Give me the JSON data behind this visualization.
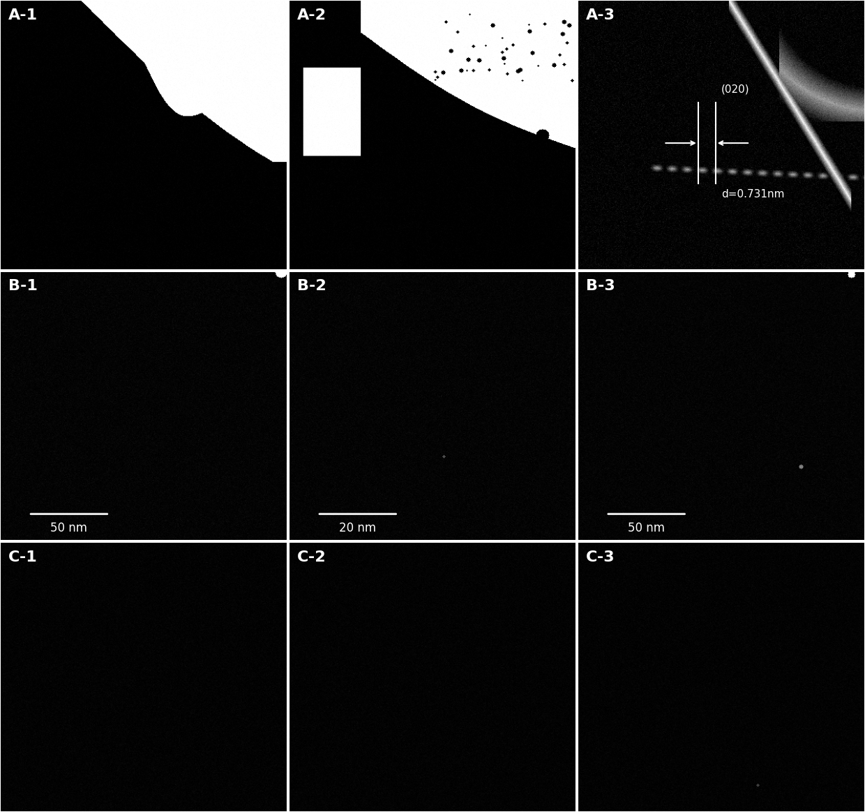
{
  "grid_rows": 3,
  "grid_cols": 3,
  "labels": [
    [
      "A-1",
      "A-2",
      "A-3"
    ],
    [
      "B-1",
      "B-2",
      "B-3"
    ],
    [
      "C-1",
      "C-2",
      "C-3"
    ]
  ],
  "background_color": "#000000",
  "label_color": "#ffffff",
  "label_fontsize": 16,
  "separator_color": "#ffffff",
  "separator_linewidth": 1.5,
  "scale_bar_color": "#ffffff",
  "scale_bar_fontsize": 12,
  "a3_annotation_label": "(020)",
  "a3_annotation_value": "d=0.731nm",
  "figsize": [
    12.4,
    11.64
  ],
  "dpi": 100
}
